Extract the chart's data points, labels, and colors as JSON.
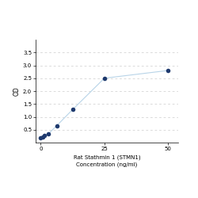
{
  "x": [
    0,
    0.78,
    1.563,
    3.125,
    6.25,
    12.5,
    25,
    50
  ],
  "y": [
    0.172,
    0.212,
    0.267,
    0.352,
    0.652,
    1.28,
    2.5,
    2.8
  ],
  "line_color": "#b8d4e8",
  "marker_color": "#1f3a6e",
  "marker_size": 16,
  "xlabel_line1": "Rat Stathmin 1 (STMN1)",
  "xlabel_line2": "Concentration (ng/ml)",
  "ylabel": "OD",
  "xlim": [
    -2,
    54
  ],
  "ylim": [
    0,
    4.0
  ],
  "yticks": [
    0.5,
    1.0,
    1.5,
    2.0,
    2.5,
    3.0,
    3.5
  ],
  "xticks": [
    0,
    25,
    50
  ],
  "grid_color": "#cccccc",
  "background_color": "#ffffff",
  "xlabel_fontsize": 5.0,
  "ylabel_fontsize": 5.5,
  "tick_fontsize": 5.0
}
